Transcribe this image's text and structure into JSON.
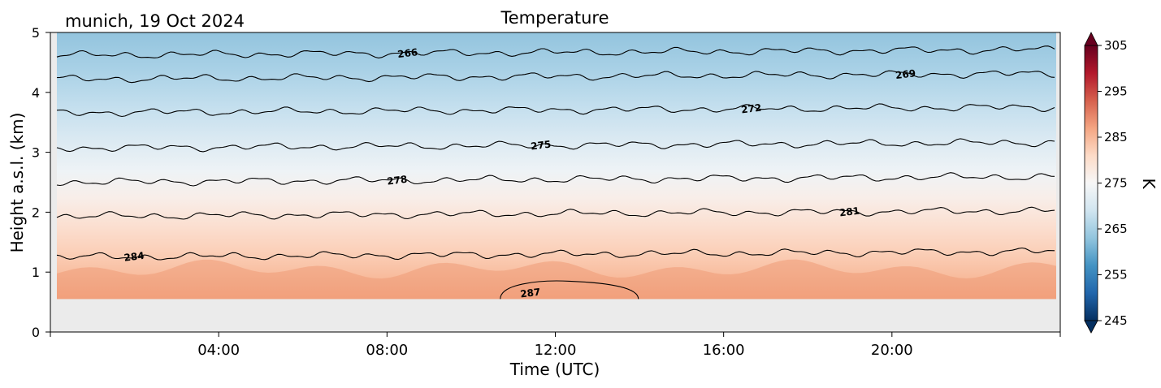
{
  "chart_data": {
    "type": "heatmap",
    "title": "Temperature",
    "subtitle": "munich, 19 Oct 2024",
    "xlabel": "Time (UTC)",
    "ylabel": "Height a.s.l. (km)",
    "xlim": [
      "00:00",
      "24:00"
    ],
    "ylim": [
      0,
      5
    ],
    "xticks": [
      "04:00",
      "08:00",
      "12:00",
      "16:00",
      "20:00"
    ],
    "yticks": [
      0,
      1,
      2,
      3,
      4,
      5
    ],
    "data_bottom_km": 0.55,
    "colorbar": {
      "label": "K",
      "range": [
        245,
        305
      ],
      "ticks": [
        245,
        255,
        265,
        275,
        285,
        295,
        305
      ],
      "colormap": "RdBu_r",
      "extend": "both"
    },
    "contours": [
      {
        "level": 266,
        "height_km": 4.62,
        "label_time": "08:30"
      },
      {
        "level": 269,
        "height_km": 4.22,
        "label_time": "20:20"
      },
      {
        "level": 272,
        "height_km": 3.66,
        "label_time": "16:40"
      },
      {
        "level": 275,
        "height_km": 3.07,
        "label_time": "11:40"
      },
      {
        "level": 278,
        "height_km": 2.5,
        "label_time": "08:15"
      },
      {
        "level": 281,
        "height_km": 1.93,
        "label_time": "19:00"
      },
      {
        "level": 284,
        "height_km": 1.25,
        "label_time": "02:00"
      },
      {
        "level": 287,
        "height_km": 0.65,
        "label_time": "11:25"
      }
    ]
  }
}
